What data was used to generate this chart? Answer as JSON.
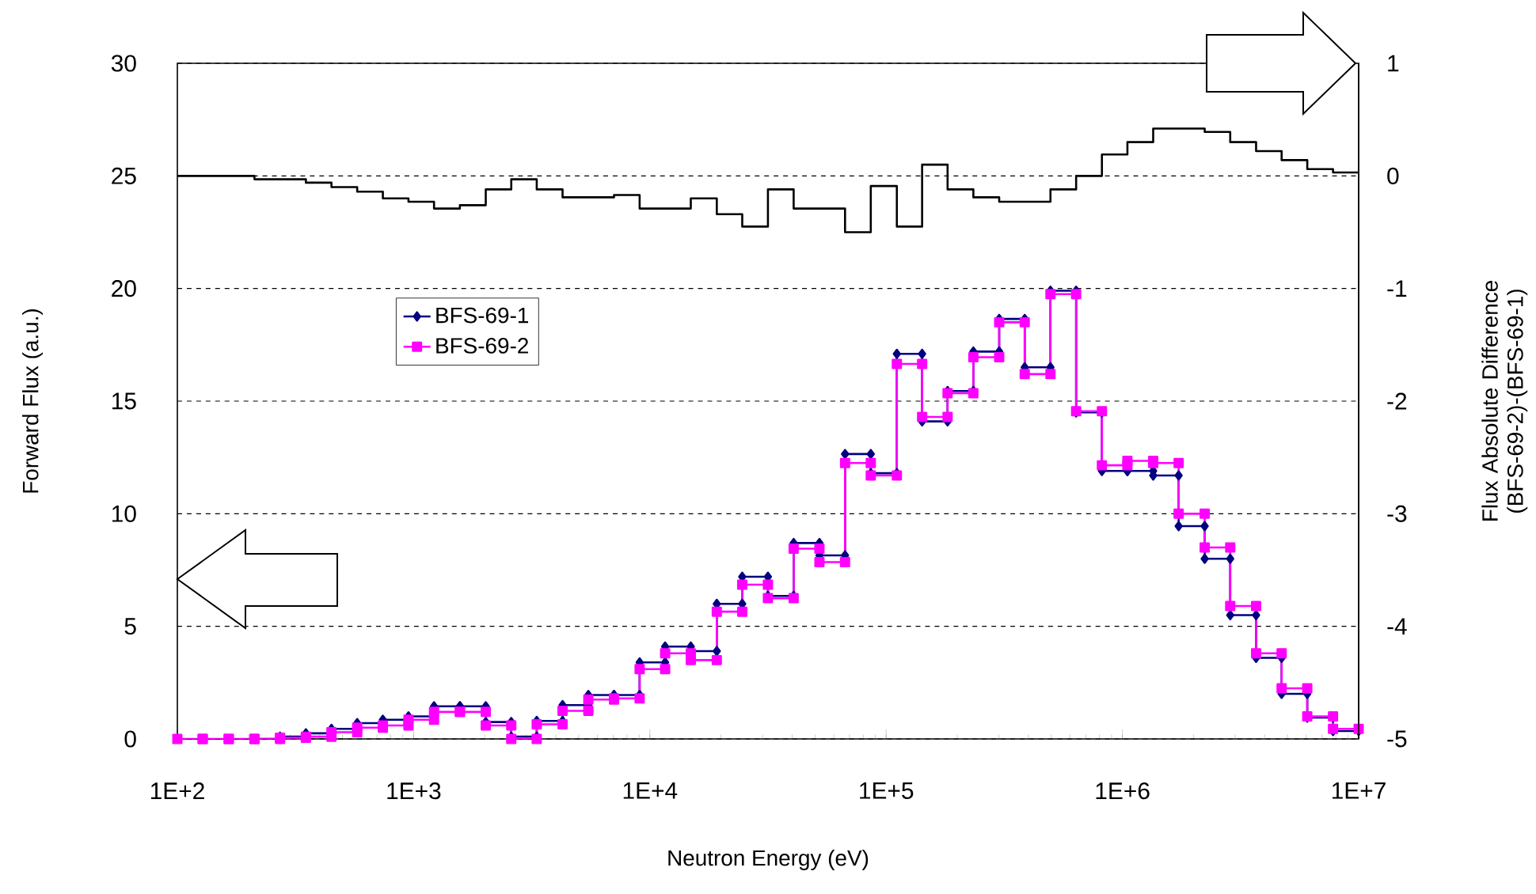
{
  "chart_data": {
    "type": "step",
    "xlabel": "Neutron Energy (eV)",
    "ylabel": "Forward Flux (a.u.)",
    "y2label": "Flux Absolute Difference (BFS-69-2)-(BFS-69-1)",
    "log": "x",
    "grid": "y",
    "legend": "left",
    "line_style": "solid",
    "xlim": [
      100,
      10000000
    ],
    "xticks": [
      {
        "value": 100,
        "label": "1E+2"
      },
      {
        "value": 1000,
        "label": "1E+3"
      },
      {
        "value": 10000,
        "label": "1E+4"
      },
      {
        "value": 100000,
        "label": "1E+5"
      },
      {
        "value": 1000000,
        "label": "1E+6"
      },
      {
        "value": 10000000,
        "label": "1E+7"
      }
    ],
    "ylim": [
      0,
      30
    ],
    "yticks": [
      0,
      5,
      10,
      15,
      20,
      25,
      30
    ],
    "y2lim": [
      -5,
      1
    ],
    "y2ticks": [
      -5,
      -4,
      -3,
      -2,
      -1,
      0,
      1
    ],
    "series": [
      {
        "name": "BFS-69-1",
        "type": "line",
        "color": "#000080",
        "marker": "diamond",
        "x": [
          212,
          272,
          272,
          350,
          350,
          449,
          449,
          577,
          577,
          741,
          741,
          951,
          951,
          1220,
          1220,
          1570,
          1570,
          2020,
          2020,
          2590,
          2590,
          3320,
          3320,
          4270,
          4270,
          5490,
          5490,
          7050,
          7050,
          9050,
          9050,
          11600,
          11600,
          14900,
          14900,
          19200,
          19200,
          24600,
          24600,
          31600,
          31600,
          40600,
          40600,
          52200,
          52200,
          67000,
          67000,
          86100,
          86100,
          111000,
          111000,
          142000,
          142000,
          182000,
          182000,
          234000,
          234000,
          301000,
          301000,
          386000,
          386000,
          496000,
          496000,
          637000,
          637000,
          819000,
          819000,
          1050000,
          1050000,
          1350000,
          1350000,
          1730000,
          1730000,
          2230000,
          2230000,
          2860000,
          2860000,
          3680000,
          3680000,
          4720000,
          4720000,
          6060000,
          6060000,
          7790000,
          7790000,
          10000000
        ],
        "values": [
          0,
          0,
          0.1,
          0.1,
          0.25,
          0.25,
          0.45,
          0.45,
          0.7,
          0.7,
          0.85,
          0.85,
          1.0,
          1.0,
          1.45,
          1.45,
          1.45,
          1.45,
          0.75,
          0.75,
          0.1,
          0.1,
          0.8,
          0.8,
          1.5,
          1.5,
          1.95,
          1.95,
          1.95,
          1.95,
          3.4,
          3.4,
          4.1,
          4.1,
          3.9,
          3.9,
          6.0,
          6.0,
          7.2,
          7.2,
          6.35,
          6.35,
          8.7,
          8.7,
          8.15,
          8.15,
          12.65,
          12.65,
          11.8,
          11.8,
          17.1,
          17.1,
          14.1,
          14.1,
          15.45,
          15.45,
          17.2,
          17.2,
          18.65,
          18.65,
          16.5,
          16.5,
          19.9,
          19.9,
          14.5,
          14.5,
          11.9,
          11.9,
          11.9,
          11.9,
          11.7,
          11.7,
          9.45,
          9.45,
          8.0,
          8.0,
          5.5,
          5.5,
          3.6,
          3.6,
          2.0,
          2.0,
          0.95,
          0.95,
          0.35,
          0.35
        ]
      },
      {
        "name": "BFS-69-2",
        "type": "line",
        "color": "#ff00ff",
        "marker": "square",
        "x": [
          100,
          128,
          128,
          165,
          165,
          212,
          212,
          272,
          272,
          350,
          350,
          449,
          449,
          577,
          577,
          741,
          741,
          951,
          951,
          1220,
          1220,
          1570,
          1570,
          2020,
          2020,
          2590,
          2590,
          3320,
          3320,
          4270,
          4270,
          5490,
          5490,
          7050,
          7050,
          9050,
          9050,
          11600,
          11600,
          14900,
          14900,
          19200,
          19200,
          24600,
          24600,
          31600,
          31600,
          40600,
          40600,
          52200,
          52200,
          67000,
          67000,
          86100,
          86100,
          111000,
          111000,
          142000,
          142000,
          182000,
          182000,
          234000,
          234000,
          301000,
          301000,
          386000,
          386000,
          496000,
          496000,
          637000,
          637000,
          819000,
          819000,
          1050000,
          1050000,
          1350000,
          1350000,
          1730000,
          1730000,
          2230000,
          2230000,
          2860000,
          2860000,
          3680000,
          3680000,
          4720000,
          4720000,
          6060000,
          6060000,
          7790000,
          7790000,
          10000000
        ],
        "values": [
          0,
          0,
          0,
          0,
          0,
          0,
          0,
          0,
          0.05,
          0.05,
          0.1,
          0.1,
          0.3,
          0.3,
          0.5,
          0.5,
          0.6,
          0.6,
          0.85,
          0.85,
          1.2,
          1.2,
          1.2,
          1.2,
          0.6,
          0.6,
          0.0,
          0.0,
          0.65,
          0.65,
          1.25,
          1.25,
          1.75,
          1.75,
          1.8,
          1.8,
          3.1,
          3.1,
          3.8,
          3.8,
          3.5,
          3.5,
          5.65,
          5.65,
          6.85,
          6.85,
          6.25,
          6.25,
          8.45,
          8.45,
          7.85,
          7.85,
          12.25,
          12.25,
          11.7,
          11.7,
          16.65,
          16.65,
          14.3,
          14.3,
          15.35,
          15.35,
          16.95,
          16.95,
          18.5,
          18.5,
          16.2,
          16.2,
          19.75,
          19.75,
          14.55,
          14.55,
          12.15,
          12.15,
          12.35,
          12.35,
          12.25,
          12.25,
          10.0,
          10.0,
          8.5,
          8.5,
          5.9,
          5.9,
          3.8,
          3.8,
          2.25,
          2.25,
          1.0,
          1.0,
          0.45,
          0.45
        ]
      },
      {
        "axis": "y2",
        "color": "#000000",
        "marker": "none",
        "x": [
          100,
          128,
          165,
          212,
          272,
          350,
          449,
          577,
          741,
          951,
          1220,
          1570,
          2020,
          2590,
          3320,
          4270,
          5490,
          7050,
          9050,
          11600,
          14900,
          19200,
          24600,
          31600,
          40600,
          52200,
          67000,
          86100,
          111000,
          142000,
          182000,
          234000,
          301000,
          386000,
          496000,
          637000,
          819000,
          1050000,
          1350000,
          1730000,
          2230000,
          2860000,
          3680000,
          4720000,
          6060000,
          7790000,
          10000000
        ],
        "values": [
          0,
          0,
          0,
          -0.03,
          -0.03,
          -0.06,
          -0.1,
          -0.14,
          -0.2,
          -0.23,
          -0.29,
          -0.26,
          -0.12,
          -0.03,
          -0.12,
          -0.19,
          -0.19,
          -0.17,
          -0.29,
          -0.29,
          -0.2,
          -0.34,
          -0.45,
          -0.12,
          -0.29,
          -0.29,
          -0.5,
          -0.09,
          -0.45,
          0.1,
          -0.12,
          -0.19,
          -0.23,
          -0.23,
          -0.12,
          0,
          0.19,
          0.3,
          0.42,
          0.42,
          0.39,
          0.3,
          0.22,
          0.14,
          0.06,
          0.03,
          0.03
        ]
      }
    ]
  }
}
